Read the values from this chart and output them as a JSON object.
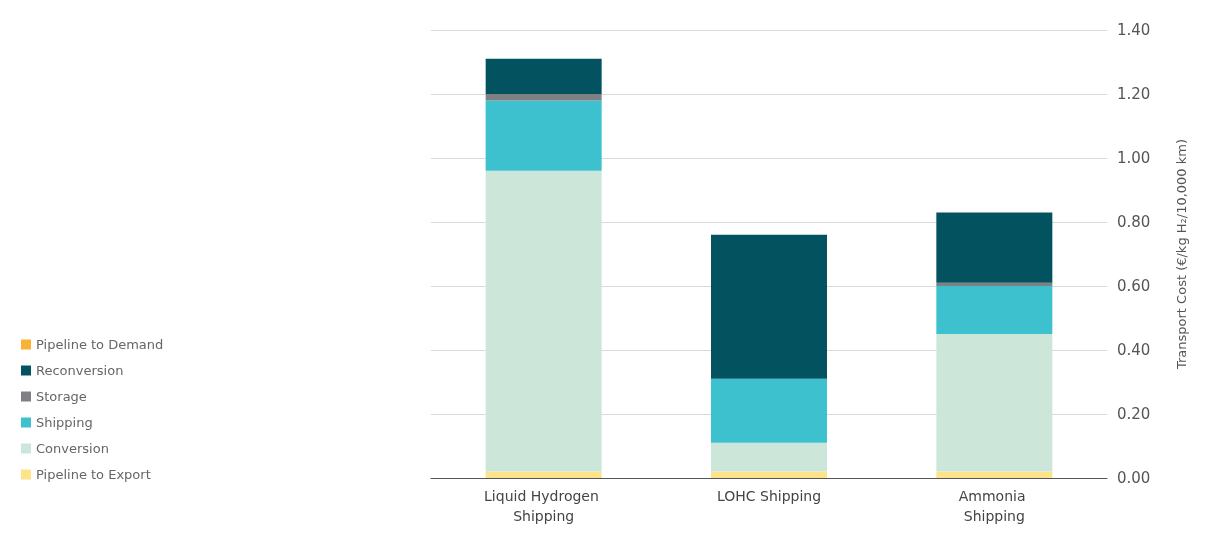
{
  "chart_data": {
    "type": "bar",
    "stacked": true,
    "categories": [
      "Liquid Hydrogen Shipping",
      "LOHC Shipping",
      "Ammonia Shipping"
    ],
    "series": [
      {
        "name": "Pipeline to Export",
        "color": "#fde38a",
        "values": [
          0.02,
          0.02,
          0.02
        ]
      },
      {
        "name": "Conversion",
        "color": "#cce7da",
        "values": [
          0.94,
          0.09,
          0.43
        ]
      },
      {
        "name": "Shipping",
        "color": "#3dc1cf",
        "values": [
          0.22,
          0.2,
          0.15
        ]
      },
      {
        "name": "Storage",
        "color": "#7f8083",
        "values": [
          0.02,
          0,
          0.01
        ]
      },
      {
        "name": "Reconversion",
        "color": "#02535f",
        "values": [
          0.11,
          0.45,
          0.22
        ]
      },
      {
        "name": "Pipeline to Demand",
        "color": "#f9b233",
        "values": [
          0,
          0,
          0
        ]
      }
    ],
    "ylabel": "Transport Cost (€/kg H₂/10,000 km)",
    "ylim": [
      0,
      1.4
    ],
    "yticks": [
      {
        "value": 0,
        "label": "0.00"
      },
      {
        "value": 0.2,
        "label": "0.20"
      },
      {
        "value": 0.4,
        "label": "0.40"
      },
      {
        "value": 0.6,
        "label": "0.60"
      },
      {
        "value": 0.8,
        "label": "0.80"
      },
      {
        "value": 1,
        "label": "1.00"
      },
      {
        "value": 1.2,
        "label": "1.20"
      },
      {
        "value": 1.4,
        "label": "1.40"
      }
    ],
    "grid": "y",
    "legend": "left"
  }
}
